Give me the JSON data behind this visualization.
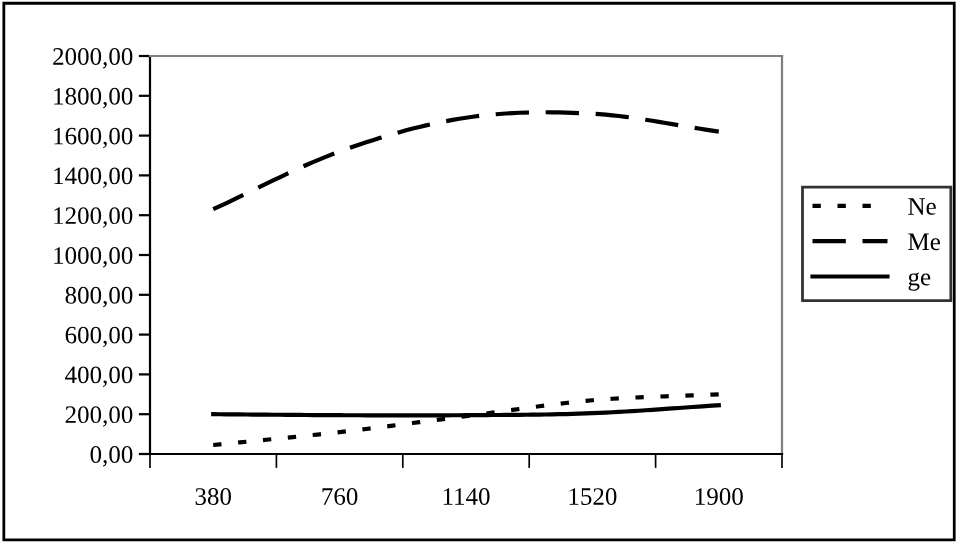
{
  "chart_data": {
    "type": "line",
    "categories": [
      "380",
      "760",
      "1140",
      "1520",
      "1900"
    ],
    "series": [
      {
        "name": "Ne",
        "color": "#000000",
        "line_style": "dotted",
        "values": [
          45,
          110,
          190,
          270,
          300
        ]
      },
      {
        "name": "Me",
        "color": "#000000",
        "line_style": "dashed",
        "values": [
          1230,
          1520,
          1690,
          1710,
          1620
        ]
      },
      {
        "name": "ge",
        "color": "#000000",
        "line_style": "solid",
        "values": [
          200,
          195,
          195,
          205,
          245
        ]
      }
    ],
    "ylim": [
      0,
      2000
    ],
    "yticks": [
      {
        "value": 0,
        "label": "0,00"
      },
      {
        "value": 200,
        "label": "200,00"
      },
      {
        "value": 400,
        "label": "400,00"
      },
      {
        "value": 600,
        "label": "600,00"
      },
      {
        "value": 800,
        "label": "800,00"
      },
      {
        "value": 1000,
        "label": "1000,00"
      },
      {
        "value": 1200,
        "label": "1200,00"
      },
      {
        "value": 1400,
        "label": "1400,00"
      },
      {
        "value": 1600,
        "label": "1600,00"
      },
      {
        "value": 1800,
        "label": "1800,00"
      },
      {
        "value": 2000,
        "label": "2000,00"
      }
    ],
    "grid": false,
    "legend": "right",
    "marker": "none"
  }
}
